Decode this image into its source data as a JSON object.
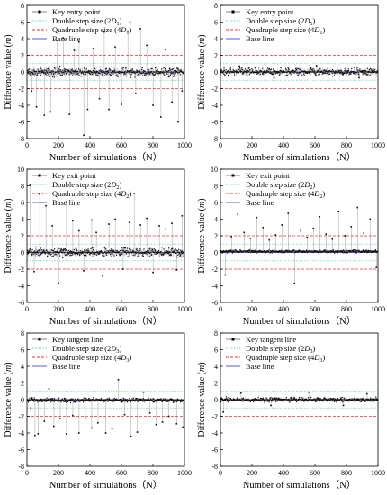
{
  "figure": {
    "background": "#ffffff"
  },
  "style": {
    "point_color": "#111111",
    "double_line_color": "#5fd3c8",
    "quad_line_color": "#e8343a",
    "base_line_color": "#5b5bd6"
  },
  "chart_data": [
    {
      "type": "scatter",
      "title": "",
      "xlabel": "Number of simulations（N）",
      "ylabel": "Difference value (m)",
      "xlim": [
        0,
        1000
      ],
      "ylim": [
        -8,
        8
      ],
      "xticks": [
        "0",
        "200",
        "400",
        "600",
        "800",
        "1000"
      ],
      "yticks": [
        "-8",
        "-6",
        "-4",
        "-2",
        "0",
        "2",
        "4",
        "6",
        "8"
      ],
      "legend_position": "top-left",
      "legend": [
        "Key entry point",
        "Double step size (2D1)",
        "Quadruple step size (4D1)",
        "Base line"
      ],
      "reference_lines": {
        "base": 0,
        "double": 1.0,
        "quadruple": 2.0
      },
      "series": [
        {
          "name": "Key entry point",
          "n": 1000,
          "core_min": -0.7,
          "core_max": 0.7,
          "x": [
            30,
            60,
            110,
            150,
            190,
            230,
            270,
            300,
            330,
            360,
            385,
            420,
            460,
            490,
            520,
            560,
            600,
            640,
            655,
            690,
            720,
            760,
            800,
            850,
            880,
            920,
            960,
            985
          ],
          "y": [
            -2.3,
            -4.2,
            -5.2,
            -4.8,
            3.8,
            4.1,
            -5.1,
            2.6,
            3.6,
            -7.6,
            -4.5,
            2.8,
            -3.2,
            4.8,
            -4.5,
            3.0,
            -3.9,
            4.9,
            6.0,
            -2.6,
            5.2,
            3.2,
            -4.0,
            -5.4,
            2.7,
            -3.6,
            -6.0,
            -2.3
          ]
        }
      ]
    },
    {
      "type": "scatter",
      "title": "",
      "xlabel": "Number of simulations（N）",
      "ylabel": "Difference value (m)",
      "xlim": [
        0,
        1000
      ],
      "ylim": [
        -8,
        8
      ],
      "xticks": [
        "0",
        "200",
        "400",
        "600",
        "800",
        "1000"
      ],
      "yticks": [
        "-8",
        "-6",
        "-4",
        "-2",
        "0",
        "2",
        "4",
        "6",
        "8"
      ],
      "legend_position": "top-left",
      "legend": [
        "Key entry point",
        "Double step size (2D1)",
        "Quadruple step size (4D1)",
        "Base line"
      ],
      "reference_lines": {
        "base": 0,
        "double": 1.0,
        "quadruple": 2.0
      },
      "series": [
        {
          "name": "Key entry point",
          "n": 1000,
          "core_min": -0.6,
          "core_max": 0.6,
          "x": [
            120,
            340,
            610,
            880
          ],
          "y": [
            0.7,
            -0.7,
            0.75,
            -0.7
          ]
        }
      ]
    },
    {
      "type": "scatter",
      "title": "",
      "xlabel": "Number of simulations（N）",
      "ylabel": "Difference value (m)",
      "xlim": [
        0,
        1000
      ],
      "ylim": [
        -6,
        10
      ],
      "xticks": [
        "0",
        "200",
        "400",
        "600",
        "800",
        "1000"
      ],
      "yticks": [
        "-6",
        "-4",
        "-2",
        "0",
        "2",
        "4",
        "6",
        "8",
        "10"
      ],
      "legend_position": "top-left",
      "legend": [
        "Key exit point",
        "Double step size (2D2)",
        "Quadruple step size (4D2)",
        "Base line"
      ],
      "reference_lines": {
        "base": 0,
        "double": 1.0,
        "quadruple": 2.0
      },
      "series": [
        {
          "name": "Key exit point",
          "n": 1000,
          "core_min": -0.7,
          "core_max": 0.7,
          "x": [
            20,
            45,
            80,
            120,
            160,
            200,
            250,
            290,
            330,
            360,
            410,
            440,
            480,
            520,
            560,
            610,
            650,
            680,
            720,
            760,
            800,
            840,
            880,
            920,
            950,
            985
          ],
          "y": [
            8.1,
            -2.3,
            7.0,
            5.6,
            3.2,
            -3.7,
            6.1,
            3.8,
            2.6,
            -2.2,
            3.9,
            2.4,
            -2.8,
            3.4,
            4.0,
            -2.0,
            3.6,
            7.1,
            3.3,
            4.1,
            -2.4,
            3.2,
            2.8,
            3.5,
            -2.1,
            4.4
          ]
        }
      ]
    },
    {
      "type": "scatter",
      "title": "",
      "xlabel": "Number of simulations（N）",
      "ylabel": "Difference value (m)",
      "xlim": [
        0,
        1000
      ],
      "ylim": [
        -6,
        10
      ],
      "xticks": [
        "0",
        "200",
        "400",
        "600",
        "800",
        "1000"
      ],
      "yticks": [
        "-6",
        "-4",
        "-2",
        "0",
        "2",
        "4",
        "6",
        "8",
        "10"
      ],
      "legend_position": "top-left",
      "legend": [
        "Key exit point",
        "Double step size (2D2)",
        "Quadruple step size (4D2)",
        "Base line"
      ],
      "reference_lines": {
        "base": 0,
        "double": 1.0,
        "quadruple": 2.0
      },
      "series": [
        {
          "name": "Key exit point",
          "n": 1000,
          "core_min": -0.1,
          "core_max": 0.35,
          "x": [
            30,
            70,
            110,
            150,
            190,
            230,
            270,
            310,
            350,
            390,
            430,
            470,
            510,
            550,
            590,
            630,
            670,
            710,
            750,
            790,
            830,
            870,
            910,
            950,
            990
          ],
          "y": [
            -2.7,
            1.9,
            4.6,
            2.4,
            1.7,
            4.2,
            3.0,
            1.5,
            2.1,
            3.3,
            4.7,
            -3.7,
            2.6,
            1.8,
            2.9,
            4.3,
            2.2,
            1.6,
            4.9,
            2.0,
            3.1,
            5.4,
            2.3,
            4.0,
            -1.8
          ]
        }
      ]
    },
    {
      "type": "scatter",
      "title": "",
      "xlabel": "Number of simulations（N）",
      "ylabel": "Difference value (m)",
      "xlim": [
        0,
        1000
      ],
      "ylim": [
        -8,
        8
      ],
      "xticks": [
        "0",
        "200",
        "400",
        "600",
        "800",
        "1000"
      ],
      "yticks": [
        "-8",
        "-6",
        "-4",
        "-2",
        "0",
        "2",
        "4",
        "6",
        "8"
      ],
      "legend_position": "top-left",
      "legend": [
        "Key tangent line",
        "Double step size (2D3)",
        "Quadruple step size (4D3)",
        "Base line"
      ],
      "reference_lines": {
        "base": 0,
        "double": 1.0,
        "quadruple": 2.0
      },
      "series": [
        {
          "name": "Key tangent line",
          "n": 1000,
          "core_min": -0.4,
          "core_max": 0.3,
          "x": [
            25,
            50,
            70,
            110,
            140,
            170,
            210,
            250,
            290,
            330,
            370,
            410,
            450,
            500,
            540,
            580,
            620,
            660,
            700,
            740,
            780,
            820,
            860,
            900,
            950,
            990
          ],
          "y": [
            -1.0,
            -4.3,
            -4.1,
            -2.6,
            1.3,
            -3.2,
            -2.3,
            -4.1,
            -1.9,
            -4.0,
            -2.3,
            -3.4,
            -2.8,
            -4.0,
            -3.5,
            2.4,
            -1.8,
            -4.4,
            -3.9,
            0.9,
            -1.6,
            -3.0,
            -2.7,
            -2.0,
            -2.9,
            -3.3
          ]
        }
      ]
    },
    {
      "type": "scatter",
      "title": "",
      "xlabel": "Number of simulations（N）",
      "ylabel": "Difference value (m)",
      "xlim": [
        0,
        1000
      ],
      "ylim": [
        -8,
        8
      ],
      "xticks": [
        "0",
        "200",
        "400",
        "600",
        "800",
        "1000"
      ],
      "yticks": [
        "-8",
        "-6",
        "-4",
        "-2",
        "0",
        "2",
        "4",
        "6",
        "8"
      ],
      "legend_position": "top-left",
      "legend": [
        "Key tangent line",
        "Double step size (2D3)",
        "Quadruple step size (4D3)",
        "Base line"
      ],
      "reference_lines": {
        "base": 0,
        "double": 1.0,
        "quadruple": 2.0
      },
      "series": [
        {
          "name": "Key tangent line",
          "n": 1000,
          "core_min": -0.35,
          "core_max": 0.35,
          "x": [
            18,
            130,
            320,
            560,
            780,
            930
          ],
          "y": [
            -1.5,
            0.8,
            -0.7,
            0.9,
            -0.7,
            0.7
          ]
        }
      ]
    }
  ]
}
